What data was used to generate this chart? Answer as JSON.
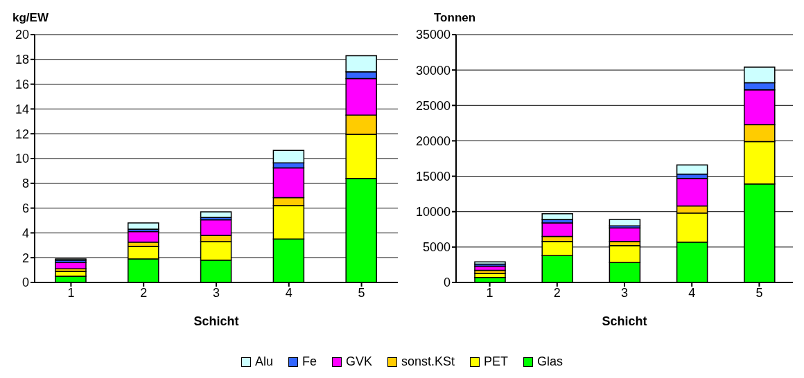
{
  "chart_data": [
    {
      "type": "bar",
      "stacked": true,
      "ylabel": "kg/EW",
      "xlabel": "Schicht",
      "categories": [
        "1",
        "2",
        "3",
        "4",
        "5"
      ],
      "ylim": [
        0,
        20
      ],
      "yticks": [
        0,
        2,
        4,
        6,
        8,
        10,
        12,
        14,
        16,
        18,
        20
      ],
      "grid": "y",
      "legend": "bottom",
      "series": [
        {
          "name": "Glas",
          "color": "#00ff00",
          "values": [
            0.5,
            1.9,
            1.8,
            3.5,
            8.4
          ]
        },
        {
          "name": "PET",
          "color": "#ffff00",
          "values": [
            0.4,
            1.0,
            1.5,
            2.7,
            3.55
          ]
        },
        {
          "name": "sonst.KSt",
          "color": "#ffcc00",
          "values": [
            0.2,
            0.35,
            0.5,
            0.65,
            1.55
          ]
        },
        {
          "name": "GVK",
          "color": "#ff00ff",
          "values": [
            0.5,
            0.85,
            1.25,
            2.4,
            2.95
          ]
        },
        {
          "name": "Fe",
          "color": "#3366ff",
          "values": [
            0.2,
            0.2,
            0.2,
            0.4,
            0.55
          ]
        },
        {
          "name": "Alu",
          "color": "#ccffff",
          "values": [
            0.1,
            0.5,
            0.45,
            1.0,
            1.3
          ]
        }
      ]
    },
    {
      "type": "bar",
      "stacked": true,
      "ylabel": "Tonnen",
      "xlabel": "Schicht",
      "categories": [
        "1",
        "2",
        "3",
        "4",
        "5"
      ],
      "ylim": [
        0,
        35000
      ],
      "yticks": [
        0,
        5000,
        10000,
        15000,
        20000,
        25000,
        30000,
        35000
      ],
      "grid": "y",
      "series": [
        {
          "color": "#00ff00",
          "values": [
            700,
            3800,
            2800,
            5700,
            13900
          ]
        },
        {
          "color": "#ffff00",
          "values": [
            600,
            2000,
            2400,
            4100,
            6000
          ]
        },
        {
          "color": "#ffcc00",
          "values": [
            400,
            700,
            600,
            1000,
            2400
          ]
        },
        {
          "color": "#ff00ff",
          "values": [
            600,
            1900,
            1900,
            3900,
            4900
          ]
        },
        {
          "color": "#3366ff",
          "values": [
            300,
            500,
            300,
            600,
            1000
          ]
        },
        {
          "color": "#ccffff",
          "values": [
            300,
            800,
            900,
            1300,
            2200
          ]
        }
      ]
    }
  ]
}
